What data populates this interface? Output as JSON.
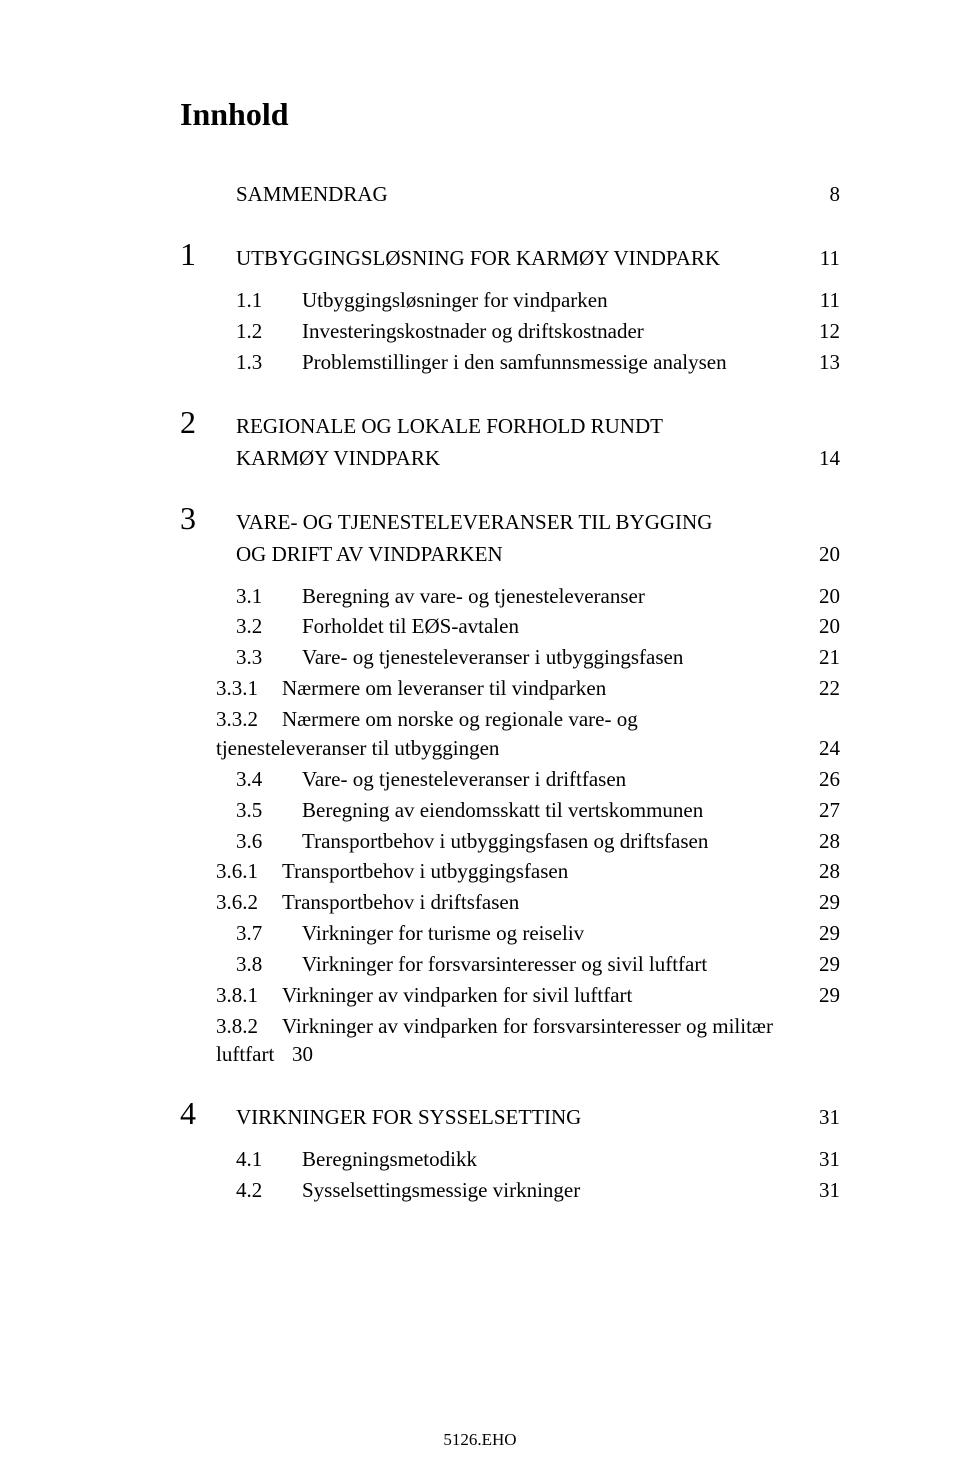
{
  "title": "Innhold",
  "footer": "5126.EHO",
  "summary": {
    "label": "SAMMENDRAG",
    "page": "8"
  },
  "sections": [
    {
      "num": "1",
      "title": "UTBYGGINGSLØSNING FOR KARMØY VINDPARK",
      "page": "11",
      "subs": [
        {
          "num": "1.1",
          "title": "Utbyggingsløsninger for vindparken",
          "page": "11"
        },
        {
          "num": "1.2",
          "title": "Investeringskostnader og driftskostnader",
          "page": "12"
        },
        {
          "num": "1.3",
          "title": "Problemstillinger i den samfunnsmessige analysen",
          "page": "13"
        }
      ]
    },
    {
      "num": "2",
      "title_line1": "REGIONALE OG LOKALE FORHOLD RUNDT",
      "title_line2": "KARMØY VINDPARK",
      "page": "14"
    },
    {
      "num": "3",
      "title_line1": "VARE- OG TJENESTELEVERANSER TIL BYGGING",
      "title_line2": "OG DRIFT AV VINDPARKEN",
      "page": "20",
      "subs": [
        {
          "num": "3.1",
          "title": "Beregning av vare- og tjenesteleveranser",
          "page": "20"
        },
        {
          "num": "3.2",
          "title": "Forholdet til EØS-avtalen",
          "page": "20"
        },
        {
          "num": "3.3",
          "title": "Vare- og tjenesteleveranser i utbyggingsfasen",
          "page": "21"
        },
        {
          "type": "subsub",
          "num": "3.3.1",
          "title": "Nærmere om leveranser til vindparken",
          "page": "22"
        },
        {
          "type": "subsub-wrap",
          "num": "3.3.2",
          "title_line1": "Nærmere om norske og regionale vare- og",
          "title_line2": "tjenesteleveranser til utbyggingen",
          "page": "24"
        },
        {
          "num": "3.4",
          "title": "Vare- og tjenesteleveranser i driftfasen",
          "page": "26"
        },
        {
          "num": "3.5",
          "title": "Beregning av eiendomsskatt til vertskommunen",
          "page": "27"
        },
        {
          "num": "3.6",
          "title": "Transportbehov i utbyggingsfasen og driftsfasen",
          "page": "28"
        },
        {
          "type": "subsub",
          "num": "3.6.1",
          "title": "Transportbehov i utbyggingsfasen",
          "page": "28"
        },
        {
          "type": "subsub",
          "num": "3.6.2",
          "title": "Transportbehov i driftsfasen",
          "page": "29"
        },
        {
          "num": "3.7",
          "title": "Virkninger for turisme og reiseliv",
          "page": "29"
        },
        {
          "num": "3.8",
          "title": "Virkninger for forsvarsinteresser og sivil luftfart",
          "page": "29"
        },
        {
          "type": "subsub",
          "num": "3.8.1",
          "title": "Virkninger av vindparken for sivil luftfart",
          "page": "29"
        },
        {
          "type": "subsub-wrap2",
          "num": "3.8.2",
          "title_line1": "Virkninger av vindparken for forsvarsinteresser og militær",
          "title_line2_label": "luftfart",
          "title_line2_page": "30"
        }
      ]
    },
    {
      "num": "4",
      "title": "VIRKNINGER FOR SYSSELSETTING",
      "page": "31",
      "subs": [
        {
          "num": "4.1",
          "title": "Beregningsmetodikk",
          "page": "31"
        },
        {
          "num": "4.2",
          "title": "Sysselsettingsmessige virkninger",
          "page": "31"
        }
      ]
    }
  ]
}
